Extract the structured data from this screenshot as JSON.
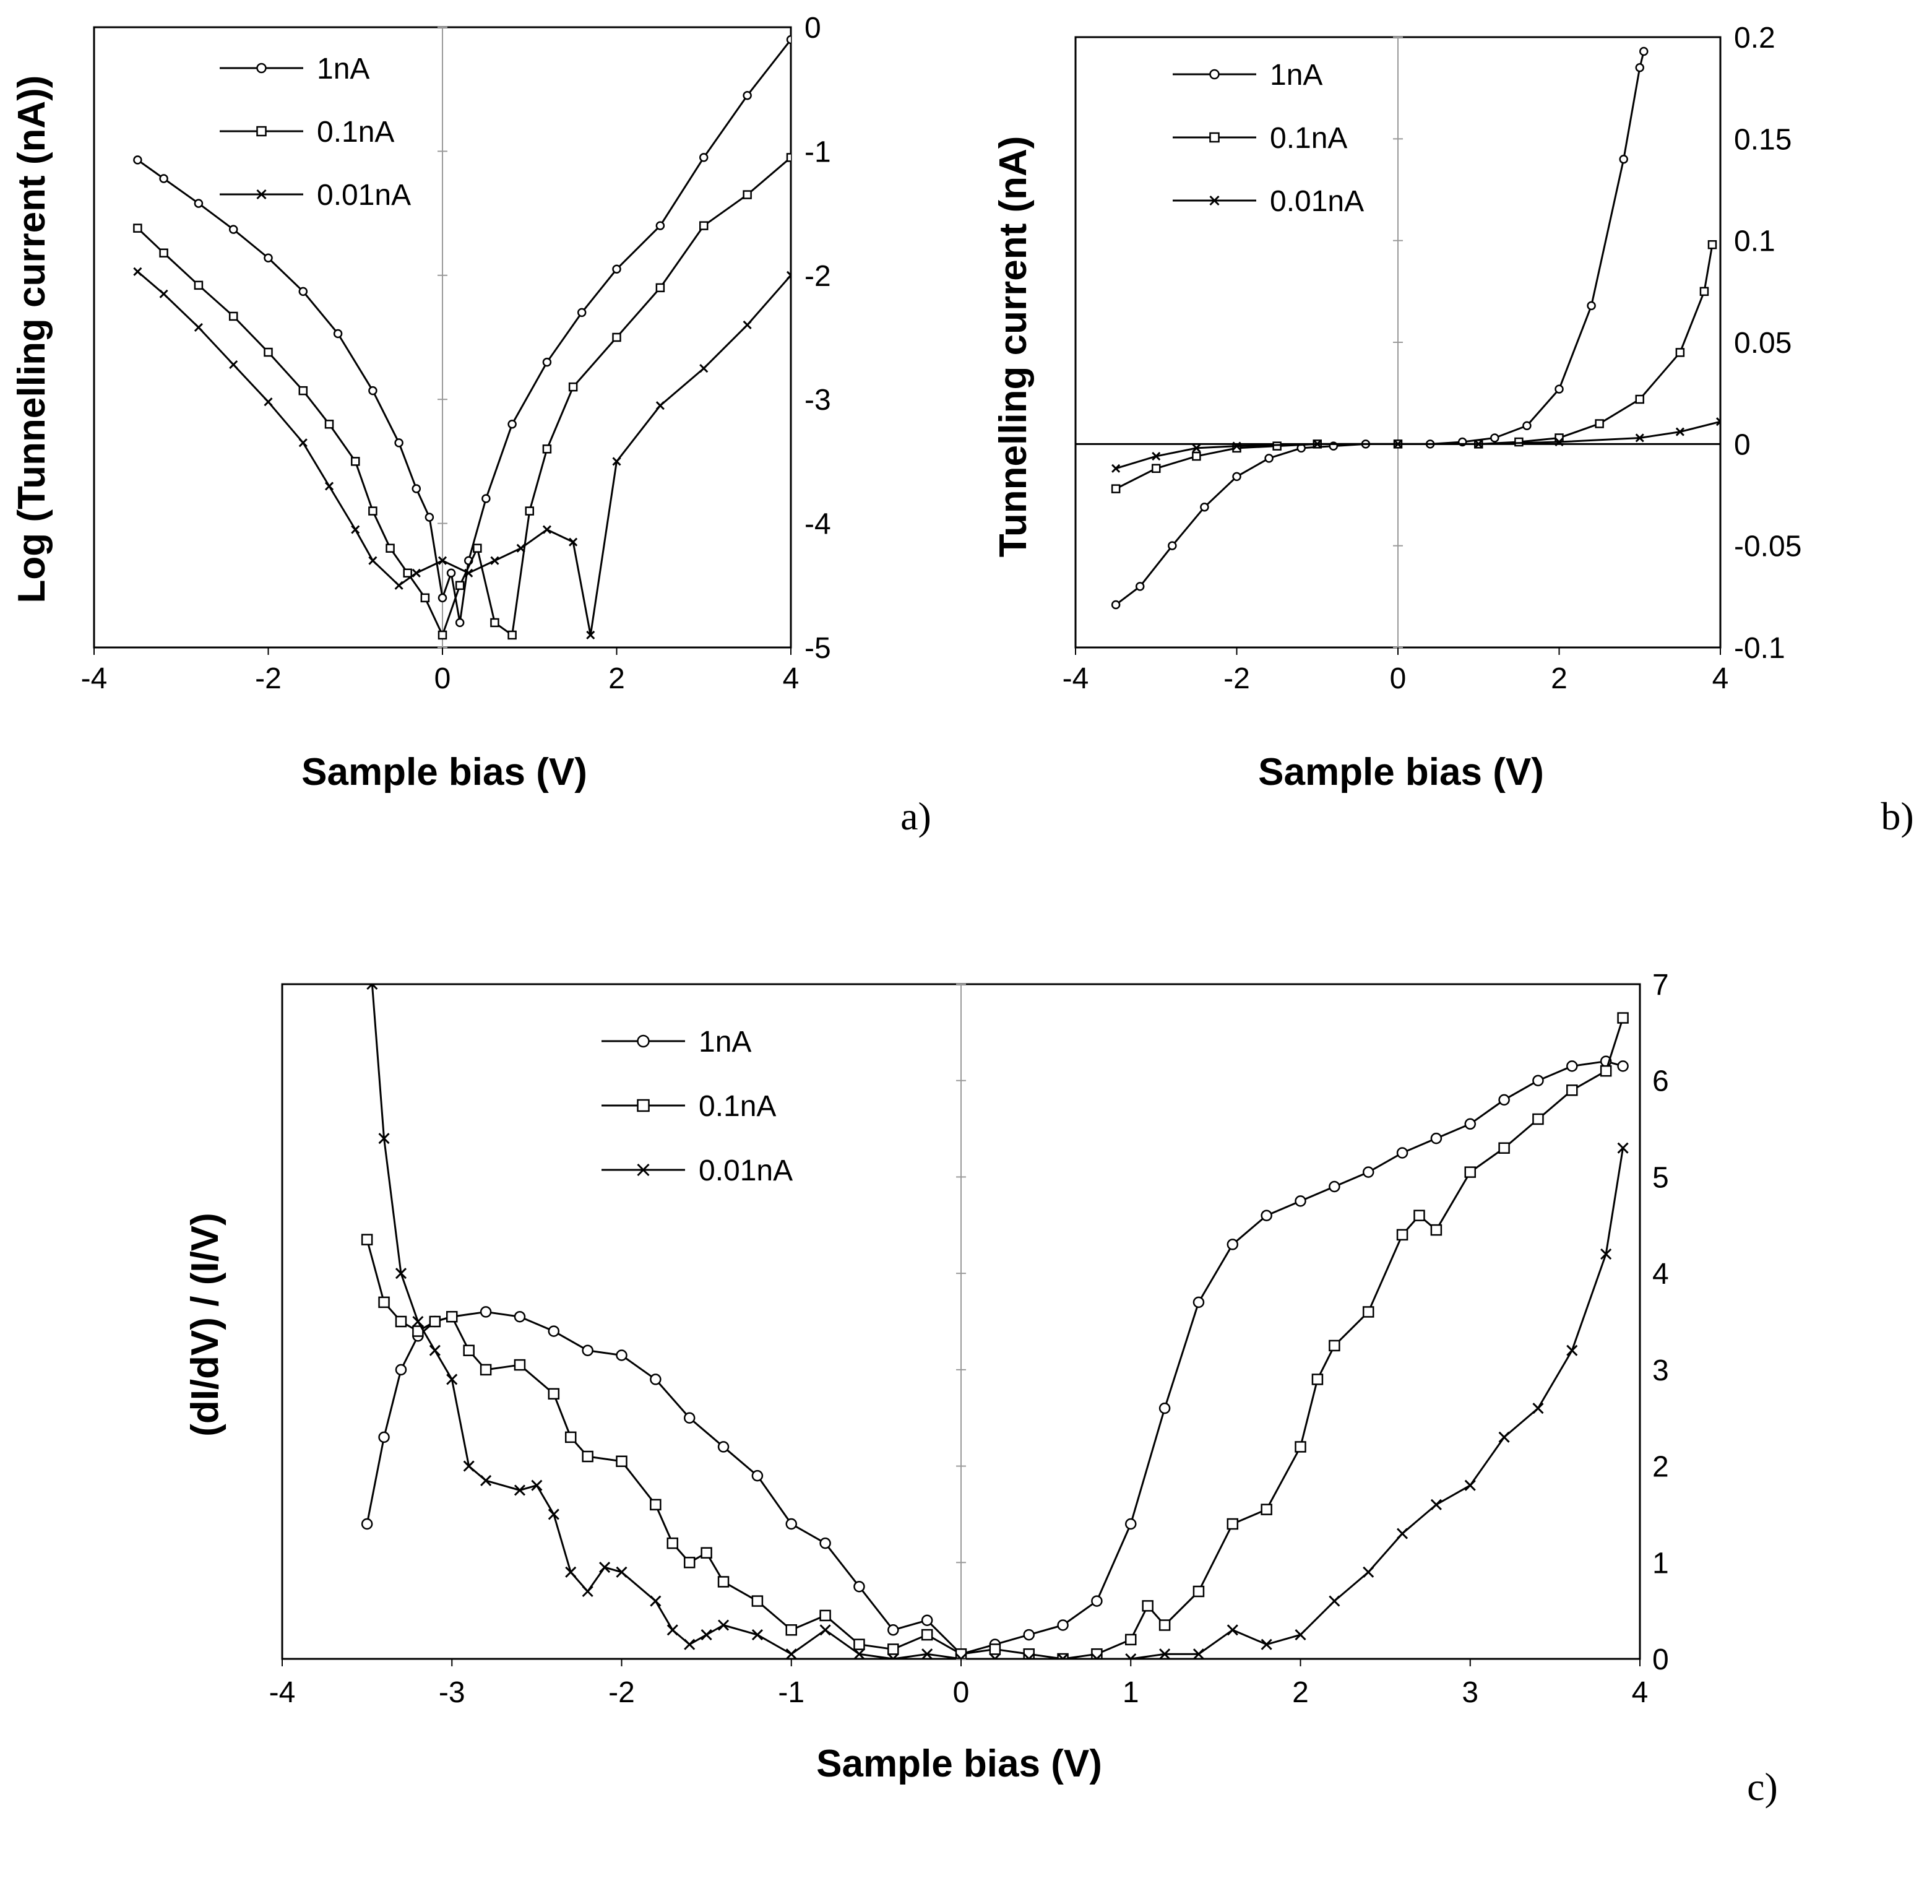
{
  "chart_data": [
    {
      "panel": "a)",
      "type": "line",
      "xlabel": "Sample bias (V)",
      "ylabel": "Log (Tunnelling current (nA))",
      "xlim": [
        -4,
        4
      ],
      "ylim": [
        -5,
        0
      ],
      "xticks": [
        "-4",
        "-2",
        "0",
        "2",
        "4"
      ],
      "yticks": [
        "0",
        "-1",
        "-2",
        "-3",
        "-4",
        "-5"
      ],
      "y_axis_side": "right",
      "legend_position": "top-left",
      "series": [
        {
          "name": "1nA",
          "marker": "circle",
          "x": [
            -3.5,
            -3.2,
            -2.8,
            -2.4,
            -2.0,
            -1.6,
            -1.2,
            -0.8,
            -0.5,
            -0.3,
            -0.15,
            0.0,
            0.1,
            0.2,
            0.3,
            0.5,
            0.8,
            1.2,
            1.6,
            2.0,
            2.5,
            3.0,
            3.5,
            4.0
          ],
          "y": [
            -1.07,
            -1.22,
            -1.42,
            -1.63,
            -1.86,
            -2.13,
            -2.47,
            -2.93,
            -3.35,
            -3.72,
            -3.95,
            -4.6,
            -4.4,
            -4.8,
            -4.3,
            -3.8,
            -3.2,
            -2.7,
            -2.3,
            -1.95,
            -1.6,
            -1.05,
            -0.55,
            -0.1
          ]
        },
        {
          "name": "0.1nA",
          "marker": "square",
          "x": [
            -3.5,
            -3.2,
            -2.8,
            -2.4,
            -2.0,
            -1.6,
            -1.3,
            -1.0,
            -0.8,
            -0.6,
            -0.4,
            -0.2,
            0.0,
            0.2,
            0.4,
            0.6,
            0.8,
            1.0,
            1.2,
            1.5,
            2.0,
            2.5,
            3.0,
            3.5,
            4.0
          ],
          "y": [
            -1.62,
            -1.82,
            -2.08,
            -2.33,
            -2.62,
            -2.93,
            -3.2,
            -3.5,
            -3.9,
            -4.2,
            -4.4,
            -4.6,
            -4.9,
            -4.5,
            -4.2,
            -4.8,
            -4.9,
            -3.9,
            -3.4,
            -2.9,
            -2.5,
            -2.1,
            -1.6,
            -1.35,
            -1.05
          ]
        },
        {
          "name": "0.01nA",
          "marker": "x",
          "x": [
            -3.5,
            -3.2,
            -2.8,
            -2.4,
            -2.0,
            -1.6,
            -1.3,
            -1.0,
            -0.8,
            -0.5,
            -0.3,
            0.0,
            0.3,
            0.6,
            0.9,
            1.2,
            1.5,
            1.7,
            2.0,
            2.5,
            3.0,
            3.5,
            4.0
          ],
          "y": [
            -1.97,
            -2.15,
            -2.42,
            -2.72,
            -3.02,
            -3.35,
            -3.7,
            -4.05,
            -4.3,
            -4.5,
            -4.4,
            -4.3,
            -4.4,
            -4.3,
            -4.2,
            -4.05,
            -4.15,
            -4.9,
            -3.5,
            -3.05,
            -2.75,
            -2.4,
            -2.0
          ]
        }
      ]
    },
    {
      "panel": "b)",
      "type": "line",
      "xlabel": "Sample bias (V)",
      "ylabel": "Tunnelling current (nA)",
      "xlim": [
        -4,
        4
      ],
      "ylim": [
        -0.1,
        0.2
      ],
      "xticks": [
        "-4",
        "-2",
        "0",
        "2",
        "4"
      ],
      "yticks": [
        "0.2",
        "0.15",
        "0.1",
        "0.05",
        "0",
        "-0.05",
        "-0.1"
      ],
      "y_axis_side": "right",
      "legend_position": "top-left",
      "series": [
        {
          "name": "1nA",
          "marker": "circle",
          "x": [
            -3.5,
            -3.2,
            -2.8,
            -2.4,
            -2.0,
            -1.6,
            -1.2,
            -0.8,
            -0.4,
            0.0,
            0.4,
            0.8,
            1.2,
            1.6,
            2.0,
            2.4,
            2.8,
            3.0,
            3.05
          ],
          "y": [
            -0.079,
            -0.07,
            -0.05,
            -0.031,
            -0.016,
            -0.007,
            -0.002,
            -0.001,
            0.0,
            0.0,
            0.0,
            0.001,
            0.003,
            0.009,
            0.027,
            0.068,
            0.14,
            0.185,
            0.193
          ]
        },
        {
          "name": "0.1nA",
          "marker": "square",
          "x": [
            -3.5,
            -3.0,
            -2.5,
            -2.0,
            -1.5,
            -1.0,
            0.0,
            1.0,
            1.5,
            2.0,
            2.5,
            3.0,
            3.5,
            3.8,
            3.9
          ],
          "y": [
            -0.022,
            -0.012,
            -0.006,
            -0.002,
            -0.001,
            0.0,
            0.0,
            0.0,
            0.001,
            0.003,
            0.01,
            0.022,
            0.045,
            0.075,
            0.098
          ]
        },
        {
          "name": "0.01nA",
          "marker": "x",
          "x": [
            -3.5,
            -3.0,
            -2.5,
            -2.0,
            -1.0,
            0.0,
            1.0,
            2.0,
            3.0,
            3.5,
            4.0
          ],
          "y": [
            -0.012,
            -0.006,
            -0.002,
            -0.001,
            0.0,
            0.0,
            0.0,
            0.001,
            0.003,
            0.006,
            0.011
          ]
        }
      ]
    },
    {
      "panel": "c)",
      "type": "line",
      "xlabel": "Sample bias (V)",
      "ylabel": "(dI/dV) / (I/V)",
      "xlim": [
        -4,
        4
      ],
      "ylim": [
        0,
        7
      ],
      "xticks": [
        "-4",
        "-3",
        "-2",
        "-1",
        "0",
        "1",
        "2",
        "3",
        "4"
      ],
      "yticks": [
        "7",
        "6",
        "5",
        "4",
        "3",
        "2",
        "1",
        "0"
      ],
      "y_axis_side": "right",
      "legend_position": "top-center",
      "series": [
        {
          "name": "1nA",
          "marker": "circle",
          "x": [
            -3.5,
            -3.4,
            -3.3,
            -3.2,
            -3.1,
            -3.0,
            -2.8,
            -2.6,
            -2.4,
            -2.2,
            -2.0,
            -1.8,
            -1.6,
            -1.4,
            -1.2,
            -1.0,
            -0.8,
            -0.6,
            -0.4,
            -0.2,
            0.0,
            0.2,
            0.4,
            0.6,
            0.8,
            1.0,
            1.2,
            1.4,
            1.6,
            1.8,
            2.0,
            2.2,
            2.4,
            2.6,
            2.8,
            3.0,
            3.2,
            3.4,
            3.6,
            3.8,
            3.9
          ],
          "y": [
            1.4,
            2.3,
            3.0,
            3.35,
            3.5,
            3.55,
            3.6,
            3.55,
            3.4,
            3.2,
            3.15,
            2.9,
            2.5,
            2.2,
            1.9,
            1.4,
            1.2,
            0.75,
            0.3,
            0.4,
            0.05,
            0.15,
            0.25,
            0.35,
            0.6,
            1.4,
            2.6,
            3.7,
            4.3,
            4.6,
            4.75,
            4.9,
            5.05,
            5.25,
            5.4,
            5.55,
            5.8,
            6.0,
            6.15,
            6.2,
            6.15
          ]
        },
        {
          "name": "0.1nA",
          "marker": "square",
          "x": [
            -3.5,
            -3.4,
            -3.3,
            -3.2,
            -3.1,
            -3.0,
            -2.9,
            -2.8,
            -2.6,
            -2.4,
            -2.3,
            -2.2,
            -2.0,
            -1.8,
            -1.7,
            -1.6,
            -1.5,
            -1.4,
            -1.2,
            -1.0,
            -0.8,
            -0.6,
            -0.4,
            -0.2,
            0.0,
            0.2,
            0.4,
            0.6,
            0.8,
            1.0,
            1.1,
            1.2,
            1.4,
            1.6,
            1.8,
            2.0,
            2.1,
            2.2,
            2.4,
            2.6,
            2.7,
            2.8,
            3.0,
            3.2,
            3.4,
            3.6,
            3.8,
            3.9
          ],
          "y": [
            4.35,
            3.7,
            3.5,
            3.4,
            3.5,
            3.55,
            3.2,
            3.0,
            3.05,
            2.75,
            2.3,
            2.1,
            2.05,
            1.6,
            1.2,
            1.0,
            1.1,
            0.8,
            0.6,
            0.3,
            0.45,
            0.15,
            0.1,
            0.25,
            0.05,
            0.1,
            0.05,
            0.0,
            0.05,
            0.2,
            0.55,
            0.35,
            0.7,
            1.4,
            1.55,
            2.2,
            2.9,
            3.25,
            3.6,
            4.4,
            4.6,
            4.45,
            5.05,
            5.3,
            5.6,
            5.9,
            6.1,
            6.65
          ]
        },
        {
          "name": "0.01nA",
          "marker": "x",
          "x": [
            -3.47,
            -3.4,
            -3.3,
            -3.2,
            -3.1,
            -3.0,
            -2.9,
            -2.8,
            -2.6,
            -2.5,
            -2.4,
            -2.3,
            -2.2,
            -2.1,
            -2.0,
            -1.8,
            -1.7,
            -1.6,
            -1.5,
            -1.4,
            -1.2,
            -1.0,
            -0.8,
            -0.6,
            -0.4,
            -0.2,
            0.0,
            0.2,
            0.4,
            0.6,
            0.8,
            1.0,
            1.2,
            1.4,
            1.6,
            1.8,
            2.0,
            2.2,
            2.4,
            2.6,
            2.8,
            3.0,
            3.2,
            3.4,
            3.6,
            3.8,
            3.9
          ],
          "y": [
            7.0,
            5.4,
            4.0,
            3.5,
            3.2,
            2.9,
            2.0,
            1.85,
            1.75,
            1.8,
            1.5,
            0.9,
            0.7,
            0.95,
            0.9,
            0.6,
            0.3,
            0.15,
            0.25,
            0.35,
            0.25,
            0.05,
            0.3,
            0.05,
            0.0,
            0.05,
            0.0,
            0.0,
            0.0,
            0.0,
            0.0,
            0.0,
            0.05,
            0.05,
            0.3,
            0.15,
            0.25,
            0.6,
            0.9,
            1.3,
            1.6,
            1.8,
            2.3,
            2.6,
            3.2,
            4.2,
            5.3
          ]
        }
      ]
    }
  ]
}
